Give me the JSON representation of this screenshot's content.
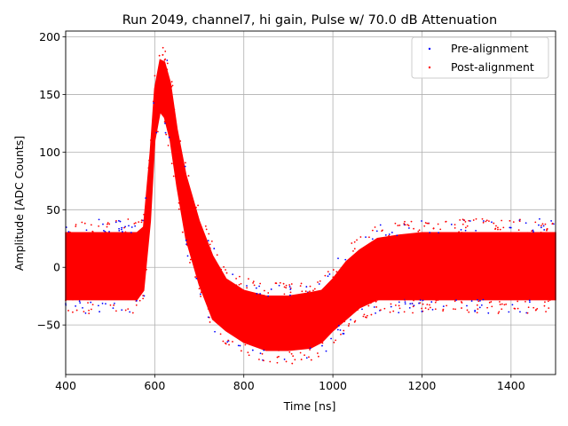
{
  "chart_data": {
    "type": "scatter",
    "title": "Run 2049, channel7, hi gain, Pulse w/ 70.0 dB Attenuation",
    "xlabel": "Time [ns]",
    "ylabel": "Amplitude [ADC Counts]",
    "xlim": [
      400,
      1500
    ],
    "ylim": [
      -93,
      205
    ],
    "xticks": [
      400,
      600,
      800,
      1000,
      1200,
      1400
    ],
    "yticks": [
      -50,
      0,
      50,
      100,
      150,
      200
    ],
    "grid": true,
    "legend_position": "top-right",
    "series": [
      {
        "name": "Pre-alignment",
        "color": "#0000ff",
        "marker": "dot"
      },
      {
        "name": "Post-alignment",
        "color": "#ff0000",
        "marker": "dot"
      }
    ],
    "envelope": {
      "description_points_x": [
        400,
        560,
        575,
        590,
        600,
        612,
        622,
        635,
        650,
        670,
        700,
        730,
        760,
        800,
        850,
        900,
        950,
        975,
        1000,
        1030,
        1060,
        1100,
        1150,
        1200,
        1300,
        1400,
        1500
      ],
      "upper": [
        30,
        30,
        35,
        100,
        155,
        180,
        178,
        160,
        120,
        80,
        40,
        10,
        -10,
        -20,
        -25,
        -25,
        -22,
        -20,
        -10,
        5,
        15,
        25,
        28,
        30,
        30,
        30,
        30
      ],
      "lower": [
        -28,
        -28,
        -20,
        40,
        110,
        135,
        130,
        110,
        70,
        25,
        -15,
        -45,
        -55,
        -65,
        -72,
        -72,
        -70,
        -65,
        -55,
        -45,
        -35,
        -28,
        -28,
        -28,
        -28,
        -28,
        -28
      ]
    }
  }
}
